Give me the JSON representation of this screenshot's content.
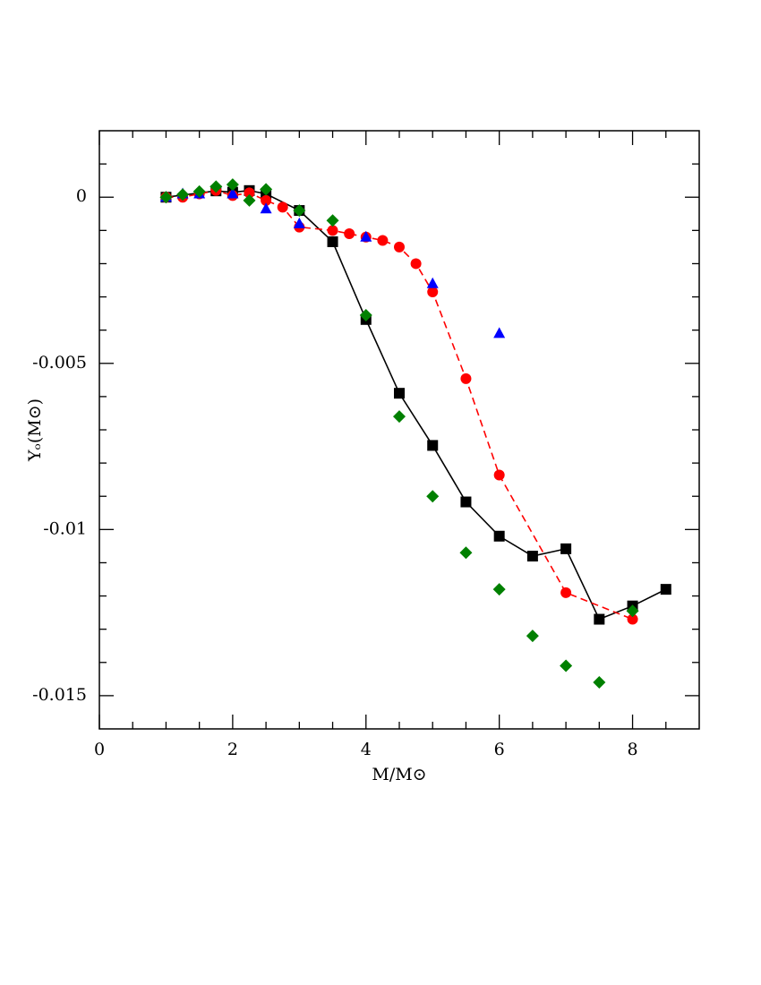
{
  "chart_data": {
    "type": "scatter",
    "xlabel": "M/M⊙",
    "ylabel": "Yₒ(M⊙)",
    "xlim": [
      0,
      9
    ],
    "ylim": [
      -0.016,
      0.002
    ],
    "xticks": [
      0,
      2,
      4,
      6,
      8
    ],
    "yticks": [
      0,
      -0.005,
      -0.01,
      -0.015
    ],
    "xminorticks": [
      0.5,
      1,
      1.5,
      2.5,
      3,
      3.5,
      4.5,
      5,
      5.5,
      6.5,
      7,
      7.5,
      8.5
    ],
    "yminorticks": [
      0.001,
      -0.001,
      -0.002,
      -0.003,
      -0.004,
      -0.006,
      -0.007,
      -0.008,
      -0.009,
      -0.011,
      -0.012,
      -0.013,
      -0.014
    ],
    "series": [
      {
        "color": "#000000",
        "marker": "square",
        "line": "solid",
        "x": [
          1,
          1.75,
          2,
          2.25,
          2.5,
          3,
          3.5,
          4,
          4.5,
          5,
          5.5,
          6,
          6.5,
          7,
          7.5,
          8,
          8.5
        ],
        "values": [
          0,
          0.00019,
          0.00015,
          0.0002,
          0.0001,
          -0.0004,
          -0.00134,
          -0.00368,
          -0.0059,
          -0.00747,
          -0.00917,
          -0.0102,
          -0.0108,
          -0.01058,
          -0.0127,
          -0.0123,
          -0.0118
        ]
      },
      {
        "color": "#ff0000",
        "marker": "circle",
        "line": "dashed",
        "x": [
          1,
          1.25,
          1.5,
          1.75,
          2,
          2.25,
          2.5,
          2.75,
          3,
          3.5,
          3.75,
          4,
          4.25,
          4.5,
          4.75,
          5,
          5.5,
          6,
          7,
          8
        ],
        "values": [
          0,
          0,
          0.0001,
          0.0002,
          5e-05,
          0.00013,
          -0.0001,
          -0.0003,
          -0.0009,
          -0.001,
          -0.0011,
          -0.0012,
          -0.0013,
          -0.0015,
          -0.002,
          -0.00285,
          -0.00546,
          -0.00836,
          -0.0119,
          -0.0127
        ]
      },
      {
        "color": "#0000ff",
        "marker": "triangle",
        "line": "none",
        "x": [
          1,
          1.25,
          1.5,
          2,
          2.5,
          3,
          4,
          5,
          6
        ],
        "values": [
          0,
          0.0001,
          0.0001,
          0.0001,
          -0.00035,
          -0.0008,
          -0.0012,
          -0.0026,
          -0.0041
        ]
      },
      {
        "color": "#008000",
        "marker": "diamond",
        "line": "none",
        "x": [
          1,
          1.25,
          1.5,
          1.75,
          2,
          2.25,
          2.5,
          3,
          3.5,
          4,
          4.5,
          5,
          5.5,
          6,
          6.5,
          7,
          7.5,
          8
        ],
        "values": [
          0,
          8e-05,
          0.00017,
          0.00032,
          0.00038,
          -0.0001,
          0.00024,
          -0.0004,
          -0.0007,
          -0.00355,
          -0.0066,
          -0.009,
          -0.0107,
          -0.0118,
          -0.0132,
          -0.0141,
          -0.0146,
          -0.01245
        ]
      }
    ]
  }
}
